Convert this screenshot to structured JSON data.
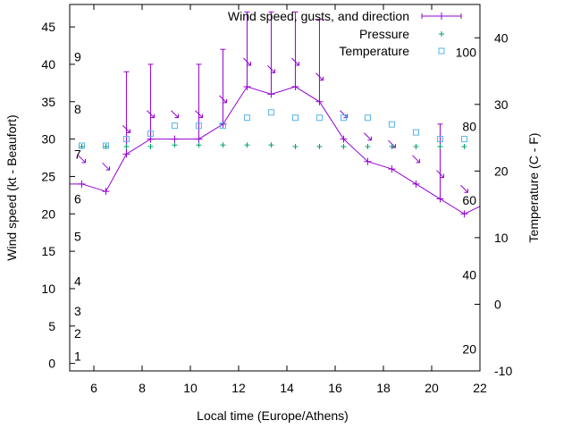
{
  "chart_data": {
    "type": "line",
    "title": "",
    "xlabel": "Local time (Europe/Athens)",
    "ylabel": "Wind speed (kt - Beaufort)",
    "y2label": "Temperature (C - F)",
    "xlim": [
      5,
      22
    ],
    "ylim": [
      -1,
      48
    ],
    "y2lim": [
      -10,
      45
    ],
    "grid": false,
    "legend_position": "top-right",
    "x_ticks": [
      6,
      8,
      10,
      12,
      14,
      16,
      18,
      20,
      22
    ],
    "y_ticks": [
      0,
      5,
      10,
      15,
      20,
      25,
      30,
      35,
      40,
      45
    ],
    "y2_ticks": [
      -10,
      0,
      10,
      20,
      30,
      40
    ],
    "beaufort_labels": [
      {
        "label": "1",
        "y": 1
      },
      {
        "label": "2",
        "y": 4
      },
      {
        "label": "3",
        "y": 7
      },
      {
        "label": "4",
        "y": 11
      },
      {
        "label": "5",
        "y": 17
      },
      {
        "label": "6",
        "y": 22
      },
      {
        "label": "7",
        "y": 28
      },
      {
        "label": "8",
        "y": 34
      },
      {
        "label": "9",
        "y": 41
      }
    ],
    "fahrenheit_labels": [
      {
        "label": "20",
        "c": -6.7
      },
      {
        "label": "40",
        "c": 4.4
      },
      {
        "label": "60",
        "c": 15.6
      },
      {
        "label": "80",
        "c": 26.7
      },
      {
        "label": "100",
        "c": 37.8
      }
    ],
    "series": [
      {
        "name": "Wind speed, gusts, and direction",
        "color": "#9400d3",
        "x": [
          5.5,
          6.5,
          7.35,
          8.35,
          9.35,
          10.35,
          11.35,
          12.35,
          13.35,
          14.35,
          15.35,
          16.35,
          17.35,
          18.35,
          19.35,
          20.35,
          21.35
        ],
        "values": [
          24,
          23,
          28,
          30,
          30,
          30,
          32,
          37,
          36,
          37,
          35,
          30,
          27,
          26,
          24,
          22,
          20
        ],
        "gusts": [
          24,
          23,
          39,
          40,
          30,
          40,
          42,
          47,
          47,
          47,
          46,
          30,
          27,
          26,
          24,
          32,
          20
        ],
        "direction_deg": [
          315,
          300,
          315,
          315,
          315,
          315,
          315,
          315,
          315,
          315,
          315,
          315,
          315,
          315,
          315,
          315,
          315
        ],
        "extra_start": [
          5.0,
          24
        ],
        "extra_end": [
          22.0,
          21
        ]
      },
      {
        "name": "Pressure",
        "color": "#009e73",
        "x": [
          5.5,
          6.5,
          7.35,
          8.35,
          9.35,
          10.35,
          11.35,
          12.35,
          13.35,
          14.35,
          15.35,
          16.35,
          17.35,
          18.35,
          19.35,
          20.35,
          21.35
        ],
        "values": [
          29,
          29,
          29,
          29,
          29.2,
          29.2,
          29.2,
          29.2,
          29.2,
          29,
          29,
          29,
          29,
          29,
          29,
          29,
          29
        ]
      },
      {
        "name": "Temperature",
        "color": "#56b4e9",
        "x": [
          5.5,
          6.5,
          7.35,
          8.35,
          9.35,
          10.35,
          11.35,
          12.35,
          13.35,
          14.35,
          15.35,
          16.35,
          17.35,
          18.35,
          19.35,
          20.35,
          21.35
        ],
        "values": [
          23.8,
          23.8,
          24.8,
          25.6,
          26.8,
          26.8,
          26.8,
          28,
          28.8,
          28,
          28,
          28,
          28,
          27,
          25.8,
          24.8,
          24.8
        ]
      }
    ]
  }
}
